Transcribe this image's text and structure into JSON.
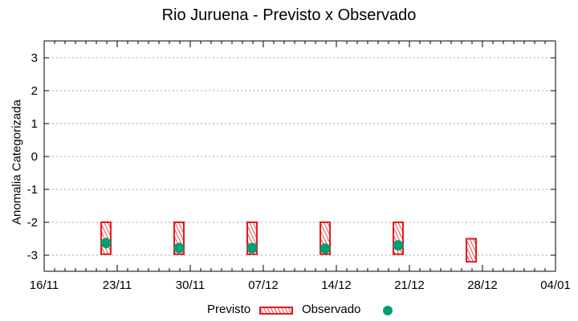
{
  "chart_data": {
    "type": "bar",
    "title": "Rio Juruena - Previsto x Observado",
    "xlabel": "",
    "ylabel": "Anomalia Categorizada",
    "ylim": [
      -3.5,
      3.5
    ],
    "yticks": [
      3,
      2,
      1,
      0,
      -1,
      -2,
      -3
    ],
    "xlim": [
      "16/11",
      "04/01"
    ],
    "xticks": [
      "16/11",
      "23/11",
      "30/11",
      "07/12",
      "14/12",
      "21/12",
      "28/12",
      "04/01"
    ],
    "grid": {
      "horizontal": true,
      "style": "dotted",
      "color": "#a0a0a0"
    },
    "legend_position": "bottom",
    "series": [
      {
        "name": "Previsto",
        "kind": "floating-bar (hatched)",
        "color": "#e41a1c",
        "points": [
          {
            "x": "21/11",
            "low": -2.97,
            "high": -2.0
          },
          {
            "x": "28/11",
            "low": -2.97,
            "high": -2.0
          },
          {
            "x": "05/12",
            "low": -2.97,
            "high": -2.0
          },
          {
            "x": "12/12",
            "low": -2.97,
            "high": -2.0
          },
          {
            "x": "19/12",
            "low": -2.97,
            "high": -2.0
          },
          {
            "x": "26/12",
            "low": -3.2,
            "high": -2.5
          }
        ]
      },
      {
        "name": "Observado",
        "kind": "point",
        "color": "#009e73",
        "points": [
          {
            "x": "21/11",
            "y": -2.63
          },
          {
            "x": "28/11",
            "y": -2.78
          },
          {
            "x": "05/12",
            "y": -2.78
          },
          {
            "x": "12/12",
            "y": -2.8
          },
          {
            "x": "19/12",
            "y": -2.7
          }
        ]
      }
    ]
  },
  "legend": {
    "previsto_label": "Previsto",
    "observado_label": "Observado"
  }
}
